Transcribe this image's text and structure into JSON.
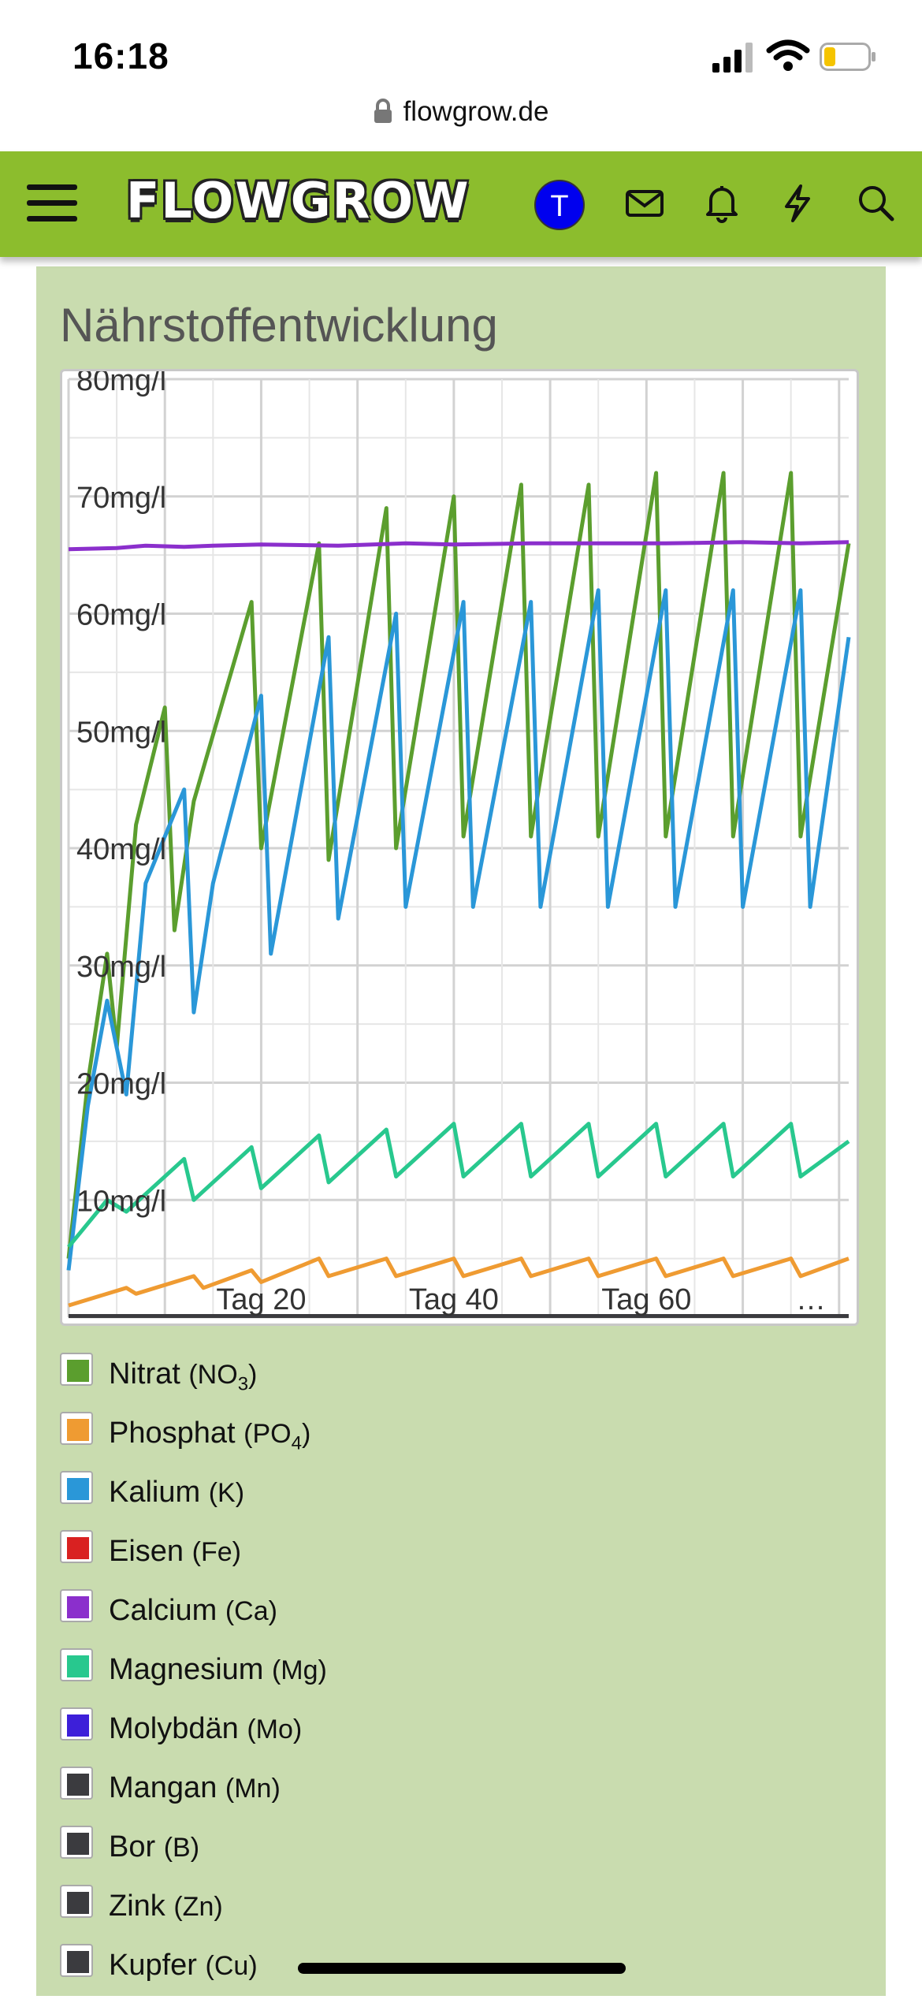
{
  "status_bar": {
    "time": "16:18"
  },
  "browser": {
    "url": "flowgrow.de"
  },
  "nav": {
    "logo_text": "FLOWGROW",
    "avatar_initial": "T"
  },
  "card": {
    "title": "Nährstoffentwicklung"
  },
  "chart_data": {
    "type": "line",
    "title": "",
    "xlabel": "",
    "ylabel": "",
    "xlim": [
      0,
      80
    ],
    "ylim": [
      0,
      80
    ],
    "y_tick_values": [
      10,
      20,
      30,
      40,
      50,
      60,
      70,
      80
    ],
    "y_tick_labels": [
      "10mg/l",
      "20mg/l",
      "30mg/l",
      "40mg/l",
      "50mg/l",
      "60mg/l",
      "70mg/l",
      "80mg/l"
    ],
    "x_tick_values": [
      20,
      40,
      60
    ],
    "x_tick_labels": [
      "Tag 20",
      "Tag 40",
      "Tag 60"
    ],
    "x_more_label": "…",
    "grid": true,
    "legend_position": "bottom",
    "series": [
      {
        "name_main": "Nitrat",
        "name_sub": "(NO",
        "name_subscript": "3",
        "name_end": ")",
        "color": "#5b9e2e",
        "x": [
          0,
          2,
          4,
          5,
          7,
          10,
          11,
          13,
          19,
          20,
          26,
          27,
          33,
          34,
          40,
          41,
          47,
          48,
          54,
          55,
          61,
          62,
          68,
          69,
          75,
          76,
          81
        ],
        "values": [
          5,
          20,
          31,
          23,
          42,
          52,
          33,
          44,
          61,
          40,
          66,
          39,
          69,
          40,
          70,
          41,
          71,
          41,
          71,
          41,
          72,
          41,
          72,
          41,
          72,
          41,
          66
        ]
      },
      {
        "name_main": "Phosphat",
        "name_sub": "(PO",
        "name_subscript": "4",
        "name_end": ")",
        "color": "#ef9b32",
        "x": [
          0,
          6,
          7,
          13,
          14,
          19,
          20,
          26,
          27,
          33,
          34,
          40,
          41,
          47,
          48,
          54,
          55,
          61,
          62,
          68,
          69,
          75,
          76,
          81
        ],
        "values": [
          1,
          2.5,
          2,
          3.5,
          2.5,
          4,
          3,
          5,
          3.5,
          5,
          3.5,
          5,
          3.5,
          5,
          3.5,
          5,
          3.5,
          5,
          3.5,
          5,
          3.5,
          5,
          3.5,
          5
        ]
      },
      {
        "name_main": "Kalium",
        "name_sub": "(K)",
        "name_subscript": "",
        "name_end": "",
        "color": "#2a97d8",
        "x": [
          0,
          2,
          4,
          6,
          8,
          12,
          13,
          15,
          20,
          21,
          27,
          28,
          34,
          35,
          41,
          42,
          48,
          49,
          55,
          56,
          62,
          63,
          69,
          70,
          76,
          77,
          81
        ],
        "values": [
          4,
          18,
          27,
          19,
          37,
          45,
          26,
          37,
          53,
          31,
          58,
          34,
          60,
          35,
          61,
          35,
          61,
          35,
          62,
          35,
          62,
          35,
          62,
          35,
          62,
          35,
          58
        ]
      },
      {
        "name_main": "Eisen",
        "name_sub": "(Fe)",
        "name_subscript": "",
        "name_end": "",
        "color": "#d92121",
        "x": [
          0,
          81
        ],
        "values": [
          0.1,
          0.1
        ]
      },
      {
        "name_main": "Calcium",
        "name_sub": "(Ca)",
        "name_subscript": "",
        "name_end": "",
        "color": "#8b2fcc",
        "x": [
          0,
          5,
          8,
          12,
          15,
          20,
          28,
          35,
          40,
          48,
          55,
          62,
          70,
          76,
          81
        ],
        "values": [
          65.5,
          65.6,
          65.8,
          65.7,
          65.8,
          65.9,
          65.8,
          66.0,
          65.9,
          66.0,
          66.0,
          66.0,
          66.1,
          66.0,
          66.1
        ]
      },
      {
        "name_main": "Magnesium",
        "name_sub": "(Mg)",
        "name_subscript": "",
        "name_end": "",
        "color": "#28c88e",
        "x": [
          0,
          4,
          5,
          6,
          12,
          13,
          19,
          20,
          26,
          27,
          33,
          34,
          40,
          41,
          47,
          48,
          54,
          55,
          61,
          62,
          68,
          69,
          75,
          76,
          81
        ],
        "values": [
          6,
          10,
          9.5,
          9,
          13.5,
          10,
          14.5,
          11,
          15.5,
          11.5,
          16,
          12,
          16.5,
          12,
          16.5,
          12,
          16.5,
          12,
          16.5,
          12,
          16.5,
          12,
          16.5,
          12,
          15
        ]
      },
      {
        "name_main": "Molybdän",
        "name_sub": "(Mo)",
        "name_subscript": "",
        "name_end": "",
        "color": "#3d1fd9",
        "x": [
          0,
          81
        ],
        "values": [
          0.1,
          0.1
        ]
      },
      {
        "name_main": "Mangan",
        "name_sub": "(Mn)",
        "name_subscript": "",
        "name_end": "",
        "color": "#3b3b3f",
        "x": [
          0,
          81
        ],
        "values": [
          0.1,
          0.1
        ]
      },
      {
        "name_main": "Bor",
        "name_sub": "(B)",
        "name_subscript": "",
        "name_end": "",
        "color": "#3b3b3f",
        "x": [
          0,
          81
        ],
        "values": [
          0.1,
          0.1
        ]
      },
      {
        "name_main": "Zink",
        "name_sub": "(Zn)",
        "name_subscript": "",
        "name_end": "",
        "color": "#3b3b3f",
        "x": [
          0,
          81
        ],
        "values": [
          0.1,
          0.1
        ]
      },
      {
        "name_main": "Kupfer",
        "name_sub": "(Cu)",
        "name_subscript": "",
        "name_end": "",
        "color": "#3b3b3f",
        "x": [
          0,
          81
        ],
        "values": [
          0.1,
          0.1
        ]
      }
    ]
  }
}
